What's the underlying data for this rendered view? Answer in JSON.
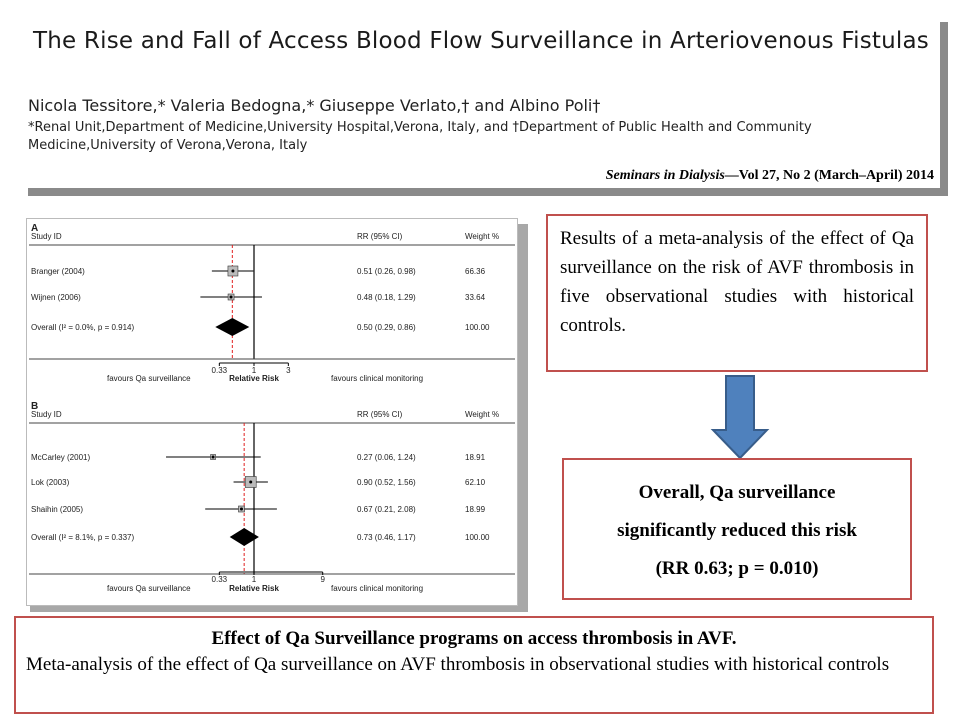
{
  "header": {
    "title": "The Rise and Fall of Access Blood Flow Surveillance in Arteriovenous Fistulas",
    "authors": "Nicola Tessitore,* Valeria Bedogna,* Giuseppe Verlato,† and Albino Poli†",
    "affiliations": "*Renal Unit,Department of Medicine,University Hospital,Verona, Italy, and †Department of Public Health and Community Medicine,University of Verona,Verona, Italy",
    "journal": "Seminars in Dialysis",
    "issue": "—Vol 27, No 2 (March–April) 2014"
  },
  "forest_plot": {
    "col_study": "Study  ID",
    "col_rr": "RR (95% CI)",
    "col_weight": "Weight %",
    "x_left_label": "favours Qa surveillance",
    "x_center_label": "Relative Risk",
    "x_right_label": "favours clinical monitoring"
  },
  "chart_data": [
    {
      "type": "forest",
      "panel": "A",
      "x_ticks": [
        "0.33",
        "1",
        "3"
      ],
      "reference_line": 1,
      "dashed_line": 0.5,
      "studies": [
        {
          "study": "Branger (2004)",
          "rr": 0.51,
          "lo": 0.26,
          "hi": 0.98,
          "ci_text": "0.51 (0.26, 0.98)",
          "weight": "66.36"
        },
        {
          "study": "Wijnen (2006)",
          "rr": 0.48,
          "lo": 0.18,
          "hi": 1.29,
          "ci_text": "0.48 (0.18, 1.29)",
          "weight": "33.64"
        }
      ],
      "overall": {
        "label": "Overall  (I² = 0.0%, p = 0.914)",
        "rr": 0.5,
        "lo": 0.29,
        "hi": 0.86,
        "ci_text": "0.50 (0.29, 0.86)",
        "weight": "100.00"
      }
    },
    {
      "type": "forest",
      "panel": "B",
      "x_ticks": [
        "0.33",
        "1",
        "9"
      ],
      "reference_line": 1,
      "dashed_line": 0.73,
      "studies": [
        {
          "study": "McCarley (2001)",
          "rr": 0.27,
          "lo": 0.06,
          "hi": 1.24,
          "ci_text": "0.27 (0.06, 1.24)",
          "weight": "18.91"
        },
        {
          "study": "Lok (2003)",
          "rr": 0.9,
          "lo": 0.52,
          "hi": 1.56,
          "ci_text": "0.90 (0.52, 1.56)",
          "weight": "62.10"
        },
        {
          "study": "Shaihin (2005)",
          "rr": 0.67,
          "lo": 0.21,
          "hi": 2.08,
          "ci_text": "0.67 (0.21, 2.08)",
          "weight": "18.99"
        }
      ],
      "overall": {
        "label": "Overall  (I² = 8.1%, p = 0.337)",
        "rr": 0.73,
        "lo": 0.46,
        "hi": 1.17,
        "ci_text": "0.73 (0.46, 1.17)",
        "weight": "100.00"
      }
    }
  ],
  "results_text": "Results of a meta-analysis of the effect of Qa surveillance on the risk of AVF thrombosis in five observational studies with historical controls.",
  "conclusion": {
    "line1": "Overall, Qa surveillance",
    "line2": "significantly reduced this risk",
    "line3": "(RR 0.63; p = 0.010)"
  },
  "caption": {
    "title": "Effect of Qa Surveillance programs on access thrombosis in AVF.",
    "text": "Meta-analysis of the effect of Qa surveillance on AVF thrombosis in observational studies with historical controls"
  },
  "colors": {
    "box_border": "#c0504d",
    "arrow_fill": "#4f81bd",
    "arrow_stroke": "#385d8a",
    "dashed_line": "#e02020"
  }
}
